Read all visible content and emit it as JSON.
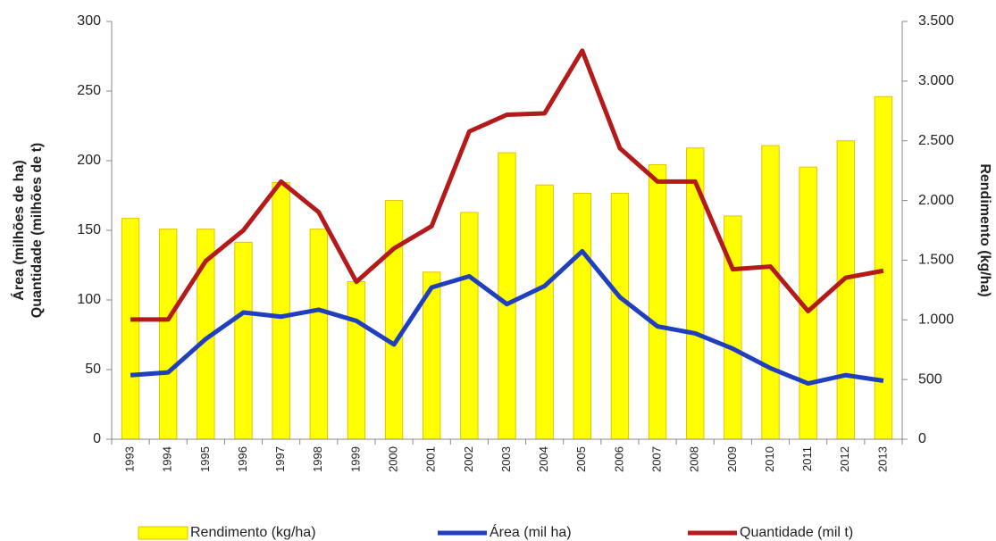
{
  "chart_data": {
    "type": "bar-line",
    "categories": [
      "1993",
      "1994",
      "1995",
      "1996",
      "1997",
      "1998",
      "1999",
      "2000",
      "2001",
      "2002",
      "2003",
      "2004",
      "2005",
      "2006",
      "2007",
      "2008",
      "2009",
      "2010",
      "2011",
      "2012",
      "2013"
    ],
    "series": [
      {
        "name": "Rendimento (kg/ha)",
        "type": "bar",
        "axis": "y2",
        "color": "#ffff00",
        "values": [
          1850,
          1760,
          1760,
          1650,
          2150,
          1760,
          1320,
          2000,
          1400,
          1900,
          2400,
          2130,
          2060,
          2060,
          2300,
          2440,
          1870,
          2460,
          2280,
          2500,
          2870
        ]
      },
      {
        "name": "Área (mil ha)",
        "type": "line",
        "color": "#1f3fbf",
        "values": [
          46,
          48,
          72,
          91,
          88,
          93,
          85,
          68,
          109,
          117,
          97,
          110,
          135,
          102,
          81,
          76,
          65,
          51,
          40,
          46,
          42
        ]
      },
      {
        "name": "Quantidade (mil t)",
        "type": "line",
        "color": "#b51a1a",
        "values": [
          86,
          86,
          128,
          150,
          185,
          163,
          113,
          137,
          153,
          221,
          233,
          234,
          279,
          209,
          185,
          185,
          122,
          124,
          92,
          116,
          121
        ]
      }
    ],
    "ylabel": [
      "Área (milhões de ha)",
      "Quantidade (milhões de t)"
    ],
    "y2label": "Rendimento (kg/ha)",
    "ylim": [
      0,
      300
    ],
    "yticks": [
      0,
      50,
      100,
      150,
      200,
      250,
      300
    ],
    "y2lim": [
      0,
      3500
    ],
    "y2ticks": [
      0,
      500,
      {
        "value": 1000,
        "label": "1.000"
      },
      {
        "value": 1500,
        "label": "1.500"
      },
      {
        "value": 2000,
        "label": "2.000"
      },
      {
        "value": 2500,
        "label": "2.500"
      },
      {
        "value": 3000,
        "label": "3.000"
      },
      {
        "value": 3500,
        "label": "3.500"
      }
    ]
  }
}
